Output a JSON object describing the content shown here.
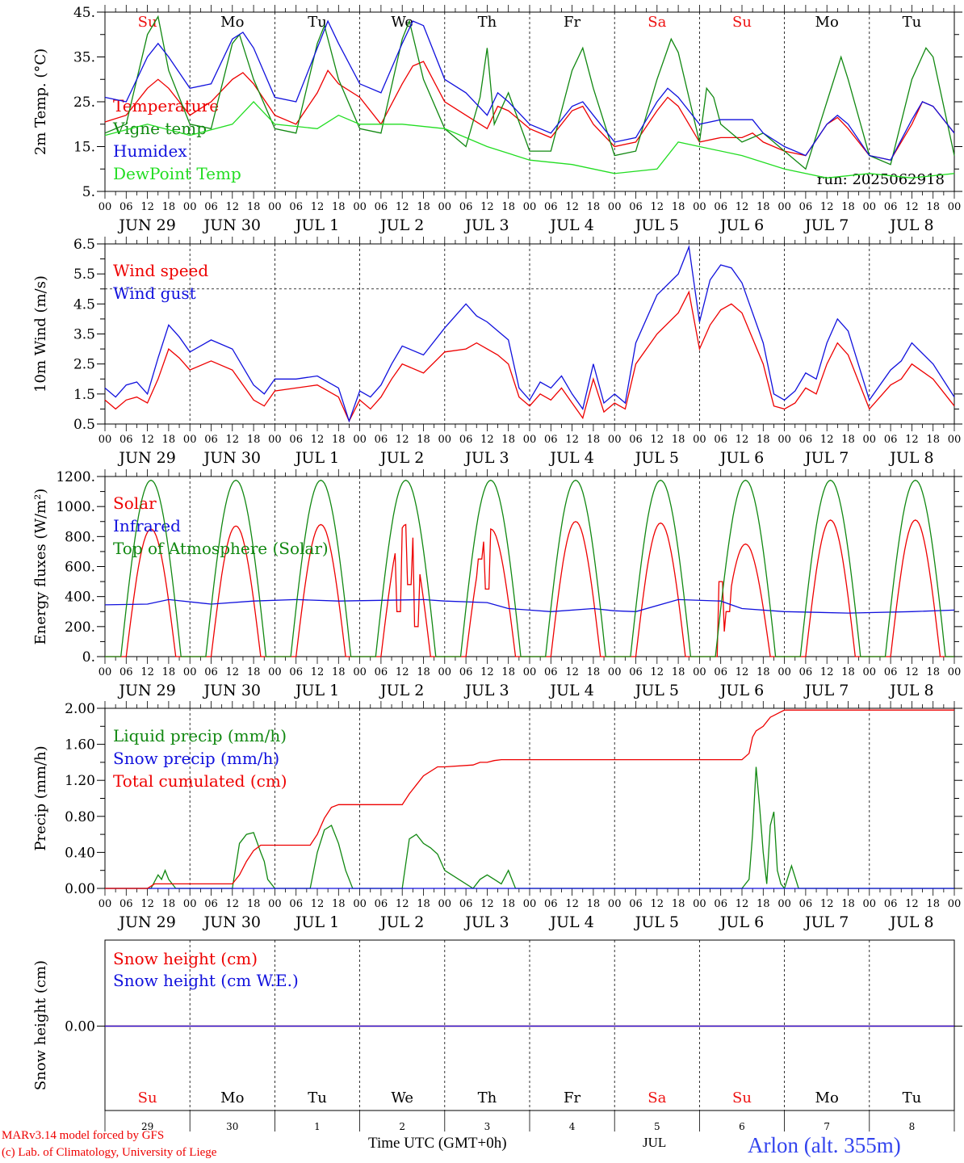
{
  "run_label": "run: 2025062918",
  "hour_ticks": [
    "00",
    "06",
    "12",
    "18"
  ],
  "final_hour": "00",
  "date_labels": [
    "JUN 29",
    "JUN 30",
    "JUL  1",
    "JUL  2",
    "JUL  3",
    "JUL  4",
    "JUL  5",
    "JUL  6",
    "JUL  7",
    "JUL  8"
  ],
  "day_names": [
    "Su",
    "Mo",
    "Tu",
    "We",
    "Th",
    "Fr",
    "Sa",
    "Su",
    "Mo",
    "Tu"
  ],
  "weekend_color": "#ee1111",
  "bottom_days": [
    "29",
    "30",
    "1",
    "2",
    "3",
    "4",
    "5",
    "6",
    "7",
    "8"
  ],
  "bottom_month": "JUL",
  "time_axis_label": "Time UTC (GMT+0h)",
  "footer": {
    "model": "MARv3.14 model forced by GFS",
    "credit": "(c) Lab. of Climatology, University of Liege",
    "station": "Arlon (alt. 355m)"
  },
  "colors": {
    "red": "#ee0000",
    "green": "#118811",
    "blue": "#1111dd",
    "lightgreen": "#22dd22"
  },
  "chart_data": [
    {
      "type": "line",
      "title": "",
      "ylabel": "2m Temp. (°C)",
      "ylim": [
        5,
        45
      ],
      "yticks": [
        "5.",
        "15.",
        "25.",
        "35.",
        "45."
      ],
      "x_unit": "hours since JUN 29 00 UTC",
      "series": [
        {
          "name": "Temperature",
          "color": "red",
          "x": [
            0,
            6,
            12,
            15,
            18,
            24,
            30,
            36,
            39,
            42,
            48,
            54,
            60,
            63,
            66,
            72,
            78,
            84,
            87,
            90,
            96,
            102,
            108,
            111,
            114,
            120,
            126,
            132,
            135,
            138,
            144,
            150,
            156,
            159,
            162,
            168,
            174,
            180,
            183,
            186,
            192,
            198,
            204,
            207,
            210,
            216,
            222,
            228,
            231,
            234,
            240
          ],
          "values": [
            20.5,
            22,
            28,
            30,
            28,
            22,
            25,
            30,
            31.5,
            29,
            22,
            20,
            27,
            32,
            29,
            26,
            20,
            29,
            33,
            34,
            25,
            22,
            19,
            24,
            23,
            19,
            17,
            23,
            24,
            20,
            15,
            16,
            23,
            26,
            24,
            16,
            17,
            17,
            18,
            16,
            14,
            13,
            20,
            21.5,
            19,
            13,
            12,
            20,
            25,
            24,
            18
          ]
        },
        {
          "name": "Vigne temp",
          "color": "green",
          "x": [
            0,
            6,
            12,
            15,
            18,
            24,
            30,
            36,
            38,
            42,
            48,
            54,
            60,
            62,
            66,
            72,
            78,
            84,
            86,
            90,
            96,
            102,
            106,
            108,
            110,
            114,
            120,
            126,
            132,
            135,
            138,
            144,
            150,
            156,
            160,
            162,
            168,
            170,
            172,
            174,
            180,
            186,
            192,
            198,
            204,
            208,
            210,
            216,
            222,
            228,
            232,
            234,
            240
          ],
          "values": [
            18,
            20,
            40,
            44,
            32,
            20,
            19,
            38,
            40,
            30,
            19,
            18,
            38,
            42,
            30,
            19,
            18,
            39,
            43,
            30,
            19,
            15,
            26,
            37,
            20,
            27,
            14,
            14,
            32,
            37,
            28,
            13,
            14,
            30,
            39,
            36,
            16,
            28,
            26,
            20,
            16,
            18,
            14,
            10,
            25,
            35,
            30,
            13,
            11,
            30,
            37,
            35,
            13
          ]
        },
        {
          "name": "Humidex",
          "color": "blue",
          "x": [
            0,
            6,
            12,
            15,
            18,
            24,
            30,
            36,
            39,
            42,
            48,
            54,
            60,
            63,
            66,
            72,
            78,
            84,
            87,
            90,
            96,
            102,
            108,
            111,
            114,
            120,
            126,
            132,
            135,
            138,
            144,
            150,
            156,
            159,
            162,
            168,
            174,
            180,
            183,
            186,
            192,
            198,
            204,
            207,
            210,
            216,
            222,
            228,
            231,
            234,
            240
          ],
          "values": [
            26,
            25,
            35,
            38,
            35,
            28,
            29,
            39,
            40.5,
            37,
            26,
            25,
            37,
            43,
            38,
            29,
            27,
            38,
            43,
            42,
            30,
            27,
            22,
            27,
            25,
            20,
            18,
            24,
            25,
            22,
            16,
            17,
            25,
            28,
            26,
            20,
            21,
            21,
            21,
            18,
            15,
            13,
            20,
            22,
            20,
            13,
            12,
            21,
            25,
            24,
            18
          ]
        },
        {
          "name": "DewPoint Temp",
          "color": "lightgreen",
          "x": [
            0,
            12,
            24,
            36,
            42,
            48,
            60,
            66,
            72,
            84,
            96,
            108,
            120,
            132,
            144,
            156,
            162,
            168,
            180,
            192,
            204,
            216,
            228,
            240
          ],
          "values": [
            17.5,
            20,
            17.5,
            20,
            25,
            20,
            19,
            22,
            20,
            20,
            19,
            15,
            12,
            11,
            9,
            10,
            16,
            15,
            13,
            10,
            8,
            9,
            8,
            9
          ]
        }
      ]
    },
    {
      "type": "line",
      "title": "",
      "ylabel": "10m Wind (m/s)",
      "ylim": [
        0.5,
        6.5
      ],
      "yticks": [
        "0.5",
        "1.5",
        "2.5",
        "3.5",
        "4.5",
        "5.5",
        "6.5"
      ],
      "reference_line": 5.0,
      "x_unit": "hours since JUN 29 00 UTC",
      "series": [
        {
          "name": "Wind speed",
          "color": "red",
          "x": [
            0,
            3,
            6,
            9,
            12,
            15,
            18,
            21,
            24,
            30,
            36,
            42,
            45,
            48,
            54,
            60,
            66,
            69,
            72,
            75,
            78,
            81,
            84,
            90,
            96,
            102,
            105,
            108,
            111,
            114,
            117,
            120,
            123,
            126,
            129,
            132,
            135,
            138,
            141,
            144,
            147,
            150,
            156,
            162,
            165,
            168,
            171,
            174,
            177,
            180,
            186,
            189,
            192,
            195,
            198,
            201,
            204,
            207,
            210,
            216,
            222,
            225,
            228,
            234,
            240
          ],
          "values": [
            1.3,
            1.0,
            1.3,
            1.4,
            1.2,
            2.0,
            3.0,
            2.7,
            2.3,
            2.6,
            2.3,
            1.3,
            1.1,
            1.6,
            1.7,
            1.8,
            1.4,
            0.6,
            1.3,
            1.0,
            1.4,
            2.0,
            2.5,
            2.2,
            2.9,
            3.0,
            3.2,
            3.0,
            2.8,
            2.5,
            1.4,
            1.1,
            1.5,
            1.3,
            1.7,
            1.2,
            0.7,
            2.0,
            0.9,
            1.2,
            1.0,
            2.5,
            3.5,
            4.2,
            4.9,
            3.0,
            3.8,
            4.3,
            4.5,
            4.2,
            2.5,
            1.1,
            1.0,
            1.2,
            1.7,
            1.5,
            2.5,
            3.2,
            2.8,
            1.0,
            1.8,
            2.0,
            2.5,
            2.0,
            1.1
          ]
        },
        {
          "name": "Wind gust",
          "color": "blue",
          "x": [
            0,
            3,
            6,
            9,
            12,
            15,
            18,
            21,
            24,
            30,
            36,
            42,
            45,
            48,
            54,
            60,
            66,
            69,
            72,
            75,
            78,
            81,
            84,
            90,
            96,
            102,
            105,
            108,
            111,
            114,
            117,
            120,
            123,
            126,
            129,
            132,
            135,
            138,
            141,
            144,
            147,
            150,
            156,
            162,
            165,
            168,
            171,
            174,
            177,
            180,
            186,
            189,
            192,
            195,
            198,
            201,
            204,
            207,
            210,
            216,
            222,
            225,
            228,
            234,
            240
          ],
          "values": [
            1.7,
            1.4,
            1.8,
            1.9,
            1.5,
            2.7,
            3.8,
            3.4,
            2.9,
            3.3,
            3.0,
            1.8,
            1.5,
            2.0,
            2.0,
            2.1,
            1.7,
            0.6,
            1.6,
            1.4,
            1.8,
            2.5,
            3.1,
            2.8,
            3.7,
            4.5,
            4.1,
            3.9,
            3.6,
            3.3,
            1.7,
            1.3,
            1.9,
            1.7,
            2.1,
            1.5,
            1.0,
            2.5,
            1.2,
            1.5,
            1.2,
            3.2,
            4.8,
            5.5,
            6.4,
            3.9,
            5.3,
            5.8,
            5.7,
            5.2,
            3.2,
            1.5,
            1.3,
            1.6,
            2.2,
            2.0,
            3.2,
            4.0,
            3.6,
            1.3,
            2.3,
            2.6,
            3.2,
            2.5,
            1.4
          ]
        }
      ]
    },
    {
      "type": "line",
      "title": "",
      "ylabel": "Energy fluxes (W/m²)",
      "ylim": [
        0,
        1200
      ],
      "yticks": [
        "0.",
        "200.",
        "400.",
        "600.",
        "800.",
        "1000.",
        "1200."
      ],
      "x_unit": "hours since JUN 29 00 UTC",
      "series": [
        {
          "name": "Solar",
          "color": "red",
          "daily_peak_wm2": [
            850,
            870,
            880,
            880,
            850,
            900,
            890,
            750,
            910,
            910
          ],
          "dips": [
            [
              83,
              300
            ],
            [
              86,
              480
            ],
            [
              88,
              200
            ],
            [
              106,
              650
            ],
            [
              108,
              450
            ],
            [
              174,
              500
            ],
            [
              176,
              300
            ]
          ]
        },
        {
          "name": "Infrared",
          "color": "blue",
          "x": [
            0,
            12,
            18,
            30,
            42,
            54,
            66,
            78,
            90,
            96,
            108,
            114,
            120,
            126,
            138,
            144,
            150,
            162,
            174,
            180,
            192,
            210,
            228,
            240
          ],
          "values": [
            345,
            350,
            380,
            350,
            370,
            380,
            370,
            375,
            380,
            370,
            360,
            320,
            310,
            300,
            320,
            305,
            300,
            380,
            370,
            320,
            300,
            290,
            300,
            310
          ]
        },
        {
          "name": "Top of Atmosphere (Solar)",
          "color": "green",
          "daily_peak_wm2": [
            1175,
            1175,
            1175,
            1175,
            1175,
            1175,
            1175,
            1175,
            1175,
            1175
          ]
        }
      ]
    },
    {
      "type": "line",
      "title": "",
      "ylabel": "Precip (mm/h)",
      "ylim": [
        0,
        2.0
      ],
      "yticks": [
        "0.00",
        "0.40",
        "0.80",
        "1.20",
        "1.60",
        "2.00"
      ],
      "x_unit": "hours since JUN 29 00 UTC",
      "series": [
        {
          "name": "Liquid precip (mm/h)",
          "color": "green",
          "x": [
            0,
            13,
            15,
            16,
            17,
            18,
            19,
            20,
            36,
            38,
            40,
            42,
            44,
            45,
            46,
            48,
            58,
            60,
            62,
            64,
            66,
            68,
            70,
            72,
            84,
            86,
            88,
            90,
            92,
            94,
            96,
            104,
            106,
            108,
            110,
            112,
            114,
            116,
            120,
            180,
            182,
            183,
            184,
            185,
            186,
            187,
            188,
            189,
            190,
            191,
            192,
            194,
            196,
            198,
            204,
            240
          ],
          "values": [
            0,
            0,
            0.15,
            0.1,
            0.2,
            0.1,
            0.05,
            0,
            0,
            0.5,
            0.6,
            0.62,
            0.4,
            0.3,
            0.1,
            0,
            0,
            0.4,
            0.65,
            0.7,
            0.5,
            0.2,
            0,
            0,
            0,
            0.55,
            0.6,
            0.5,
            0.45,
            0.38,
            0.2,
            0,
            0.1,
            0.15,
            0.1,
            0.05,
            0.2,
            0,
            0,
            0,
            0.1,
            0.6,
            1.35,
            0.9,
            0.4,
            0.05,
            0.7,
            0.85,
            0.2,
            0.05,
            0,
            0.25,
            0,
            0,
            0,
            0
          ]
        },
        {
          "name": "Snow precip (mm/h)",
          "color": "blue",
          "x": [
            0,
            240
          ],
          "values": [
            0,
            0
          ]
        },
        {
          "name": "Total cumulated (cm)",
          "color": "red",
          "x": [
            0,
            12,
            14,
            16,
            36,
            38,
            40,
            42,
            44,
            48,
            58,
            60,
            62,
            64,
            66,
            72,
            84,
            86,
            88,
            90,
            94,
            96,
            104,
            106,
            108,
            110,
            112,
            120,
            156,
            180,
            182,
            183,
            184,
            186,
            188,
            192,
            240
          ],
          "values": [
            0,
            0,
            0.05,
            0.05,
            0.05,
            0.15,
            0.3,
            0.42,
            0.48,
            0.48,
            0.48,
            0.6,
            0.78,
            0.9,
            0.93,
            0.93,
            0.93,
            1.05,
            1.15,
            1.25,
            1.35,
            1.35,
            1.37,
            1.4,
            1.4,
            1.42,
            1.43,
            1.43,
            1.43,
            1.43,
            1.5,
            1.68,
            1.75,
            1.8,
            1.9,
            1.98,
            1.98
          ]
        }
      ]
    },
    {
      "type": "line",
      "title": "",
      "ylabel": "Snow height (cm)",
      "yticks": [
        "0.00"
      ],
      "x_unit": "hours since JUN 29 00 UTC",
      "series": [
        {
          "name": "Snow height (cm)",
          "color": "red",
          "x": [
            0,
            240
          ],
          "values": [
            0,
            0
          ]
        },
        {
          "name": "Snow height (cm W.E.)",
          "color": "blue",
          "x": [
            0,
            240
          ],
          "values": [
            0,
            0
          ]
        }
      ]
    }
  ]
}
